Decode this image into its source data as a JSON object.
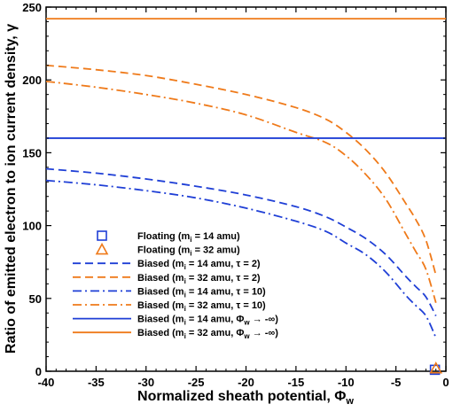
{
  "chart_data": {
    "type": "line",
    "xlabel": "Normalized sheath potential, Φ",
    "xlabel_sub": "w",
    "ylabel": "Ratio of emitted electron to ion current density, γ",
    "xlim": [
      -40,
      0
    ],
    "ylim": [
      0,
      250
    ],
    "x_ticks": [
      -40,
      -35,
      -30,
      -25,
      -20,
      -15,
      -10,
      -5,
      0
    ],
    "y_ticks": [
      0,
      50,
      100,
      150,
      200,
      250
    ],
    "grid": false,
    "legend_position": "lower-left",
    "series": [
      {
        "name_main": "Floating (m",
        "name_sub": "i",
        "name_end": " = 14 amu)",
        "kind": "marker",
        "marker": "square",
        "color": "#1f3fd6",
        "points": [
          [
            -1.1,
            1
          ]
        ]
      },
      {
        "name_main": "Floating (m",
        "name_sub": "i",
        "name_end": " = 32 amu)",
        "kind": "marker",
        "marker": "triangle",
        "color": "#ef7a1a",
        "points": [
          [
            -1.0,
            2
          ]
        ]
      },
      {
        "name_main": "Biased (m",
        "name_sub": "i",
        "name_end": " = 14 amu, τ = 2)",
        "kind": "line",
        "dash": "dashed",
        "color": "#1f3fd6",
        "points": [
          [
            -40,
            139
          ],
          [
            -35,
            136
          ],
          [
            -30,
            132
          ],
          [
            -25,
            127
          ],
          [
            -20,
            121
          ],
          [
            -15,
            113
          ],
          [
            -12,
            106
          ],
          [
            -10,
            99
          ],
          [
            -8,
            91
          ],
          [
            -6,
            80
          ],
          [
            -4,
            65
          ],
          [
            -3,
            58
          ],
          [
            -2,
            51
          ],
          [
            -1,
            38
          ]
        ]
      },
      {
        "name_main": "Biased (m",
        "name_sub": "i",
        "name_end": " = 32 amu, τ = 2)",
        "kind": "line",
        "dash": "dashed",
        "color": "#ef7a1a",
        "points": [
          [
            -40,
            210
          ],
          [
            -35,
            207
          ],
          [
            -30,
            203
          ],
          [
            -25,
            197
          ],
          [
            -20,
            190
          ],
          [
            -15,
            181
          ],
          [
            -12,
            173
          ],
          [
            -10,
            164
          ],
          [
            -8,
            152
          ],
          [
            -6,
            136
          ],
          [
            -4,
            115
          ],
          [
            -3,
            104
          ],
          [
            -2,
            90
          ],
          [
            -1,
            66
          ]
        ]
      },
      {
        "name_main": "Biased (m",
        "name_sub": "i",
        "name_end": " = 14 amu, τ = 10)",
        "kind": "line",
        "dash": "dashdot",
        "color": "#1f3fd6",
        "points": [
          [
            -40,
            131
          ],
          [
            -35,
            128
          ],
          [
            -30,
            124
          ],
          [
            -25,
            119
          ],
          [
            -20,
            112
          ],
          [
            -15,
            103
          ],
          [
            -12,
            96
          ],
          [
            -10,
            88
          ],
          [
            -8,
            80
          ],
          [
            -6,
            68
          ],
          [
            -4,
            52
          ],
          [
            -3,
            45
          ],
          [
            -2,
            38
          ],
          [
            -1,
            23
          ]
        ]
      },
      {
        "name_main": "Biased (m",
        "name_sub": "i",
        "name_end": " = 32 amu, τ = 10)",
        "kind": "line",
        "dash": "dashdot",
        "color": "#ef7a1a",
        "points": [
          [
            -40,
            199
          ],
          [
            -35,
            195
          ],
          [
            -30,
            190
          ],
          [
            -25,
            184
          ],
          [
            -20,
            176
          ],
          [
            -15,
            164
          ],
          [
            -12,
            157
          ],
          [
            -10,
            148
          ],
          [
            -8,
            135
          ],
          [
            -6,
            118
          ],
          [
            -4,
            94
          ],
          [
            -3,
            82
          ],
          [
            -2,
            70
          ],
          [
            -1,
            47
          ]
        ]
      },
      {
        "name_main": "Biased (m",
        "name_sub": "i",
        "name_end": " = 14 amu, Φ",
        "name_sub2": "w",
        "name_tail": " → -∞)",
        "kind": "line",
        "dash": "solid",
        "color": "#1f3fd6",
        "points": [
          [
            -40,
            160
          ],
          [
            0,
            160
          ]
        ]
      },
      {
        "name_main": "Biased (m",
        "name_sub": "i",
        "name_end": " = 32 amu, Φ",
        "name_sub2": "w",
        "name_tail": " → -∞)",
        "kind": "line",
        "dash": "solid",
        "color": "#ef7a1a",
        "points": [
          [
            -40,
            242
          ],
          [
            0,
            242
          ]
        ]
      }
    ]
  }
}
